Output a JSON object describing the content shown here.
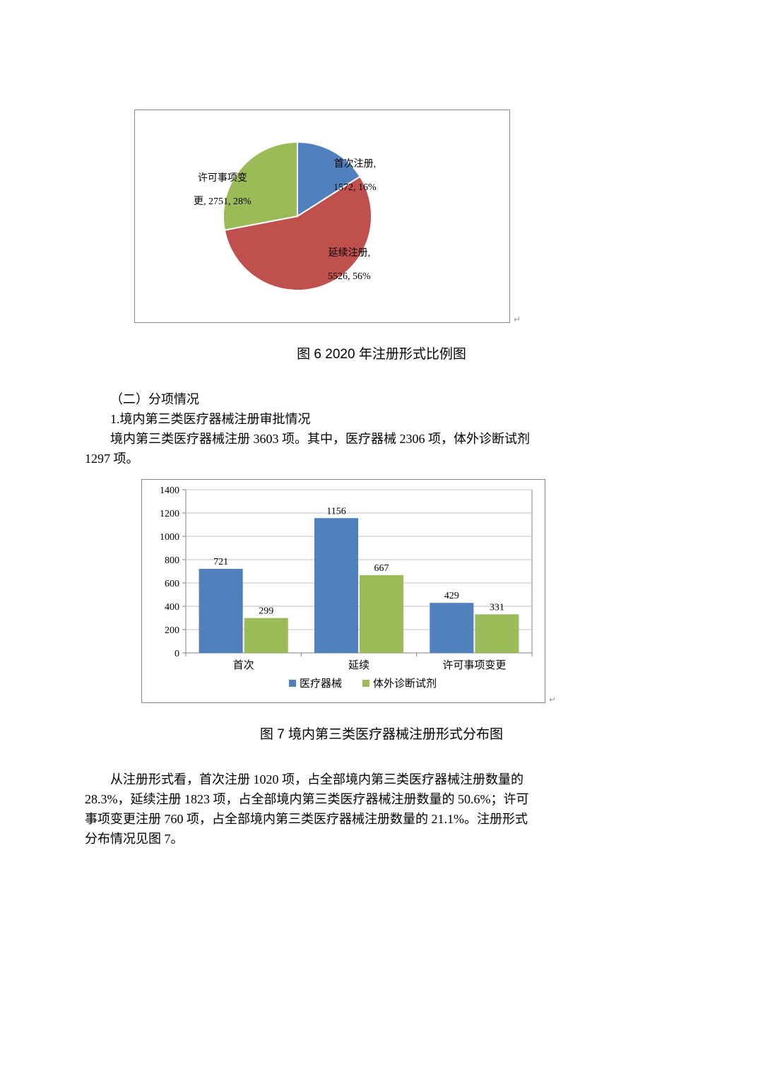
{
  "pie_chart": {
    "type": "pie",
    "background_color": "#ffffff",
    "border_color": "#888888",
    "slices": [
      {
        "name": "首次注册",
        "label_line1": "首次注册,",
        "label_line2": "1572, 16%",
        "value": 1572,
        "pct": 16,
        "color": "#5080be"
      },
      {
        "name": "延续注册",
        "label_line1": "延续注册,",
        "label_line2": "5526, 56%",
        "value": 5526,
        "pct": 56,
        "color": "#c0504d"
      },
      {
        "name": "许可事项变更",
        "label_line1": "许可事项变",
        "label_line2": "更, 2751, 28%",
        "value": 2751,
        "pct": 28,
        "color": "#9bbb59"
      }
    ],
    "label_fontsize": 14,
    "label_color": "#000000",
    "slice_border_color": "#ffffff",
    "slice_border_width": 2,
    "start_angle_deg": -90
  },
  "pie_caption": "图 6   2020 年注册形式比例图",
  "section_heading": "（二）分项情况",
  "subheading": "1.境内第三类医疗器械注册审批情况",
  "paragraph_1a": "境内第三类医疗器械注册 3603 项。其中，医疗器械 2306 项，体外诊断试剂",
  "paragraph_1b": "1297 项。",
  "bar_chart": {
    "type": "bar",
    "background_color": "#ffffff",
    "plot_bg_color": "#ffffff",
    "categories": [
      "首次",
      "延续",
      "许可事项变更"
    ],
    "series": [
      {
        "name": "医疗器械",
        "color": "#5080be",
        "values": [
          721,
          1156,
          429
        ]
      },
      {
        "name": "体外诊断试剂",
        "color": "#9bbb59",
        "values": [
          299,
          667,
          331
        ]
      }
    ],
    "ylim": [
      0,
      1400
    ],
    "ytick_step": 200,
    "grid_color": "#bfbfbf",
    "axis_color": "#808080",
    "tick_label_fontsize": 14,
    "category_label_fontsize": 15,
    "value_label_fontsize": 14,
    "legend_marker_size": 10,
    "bar_width_ratio": 0.38
  },
  "bar_caption": "图 7 境内第三类医疗器械注册形式分布图",
  "paragraph_2_l1": "从注册形式看，首次注册 1020 项，占全部境内第三类医疗器械注册数量的",
  "paragraph_2_l2": "28.3%，延续注册 1823 项，占全部境内第三类医疗器械注册数量的 50.6%；许可",
  "paragraph_2_l3": "事项变更注册 760 项，占全部境内第三类医疗器械注册数量的 21.1%。注册形式",
  "paragraph_2_l4": "分布情况见图 7。"
}
